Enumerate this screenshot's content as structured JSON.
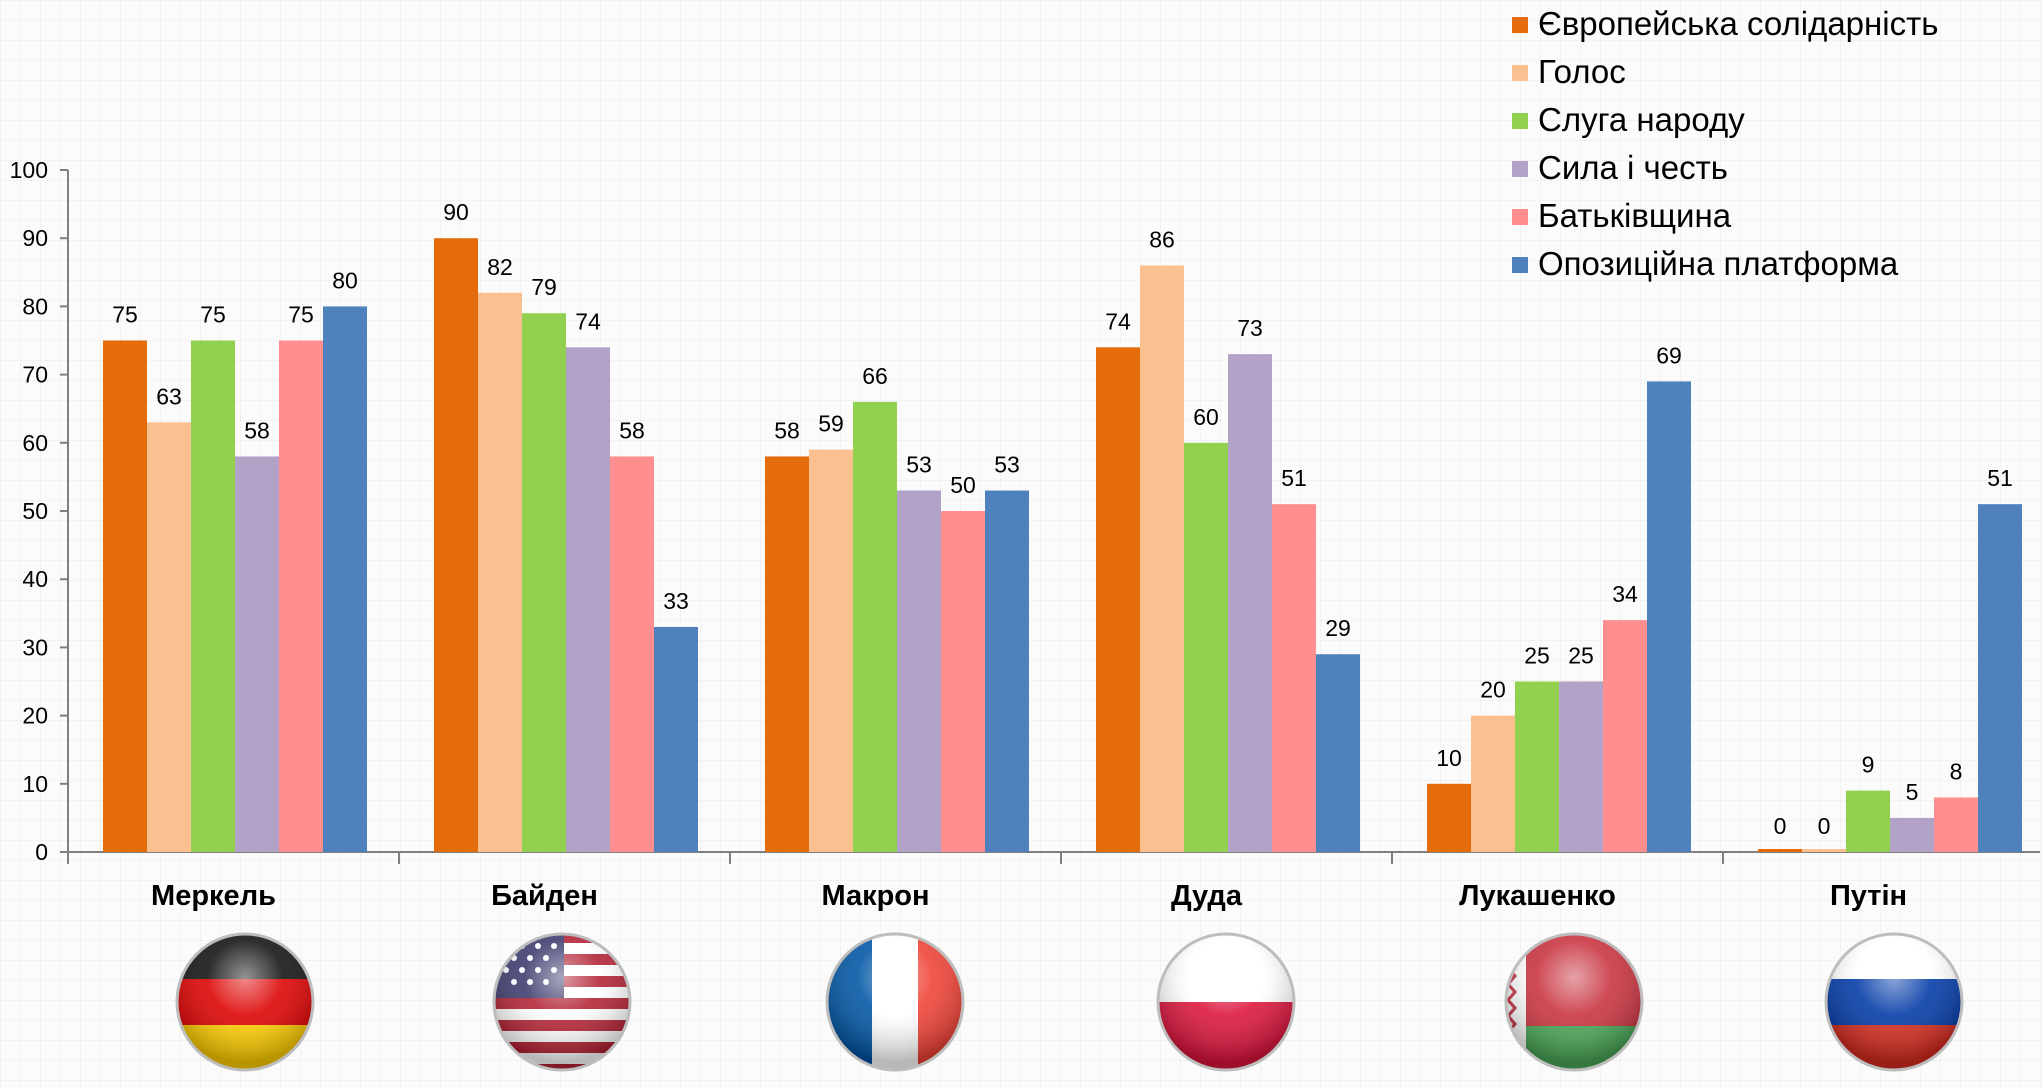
{
  "chart_data": {
    "type": "bar",
    "categories": [
      "Меркель",
      "Байден",
      "Макрон",
      "Дуда",
      "Лукашенко",
      "Путін"
    ],
    "category_flags": [
      "germany-flag-icon",
      "usa-flag-icon",
      "france-flag-icon",
      "poland-flag-icon",
      "belarus-flag-icon",
      "russia-flag-icon"
    ],
    "series": [
      {
        "name": "Європейська солідарність",
        "color": "#e46c0a",
        "values": [
          75,
          90,
          58,
          74,
          10,
          0
        ]
      },
      {
        "name": "Голос",
        "color": "#fac090",
        "values": [
          63,
          82,
          59,
          86,
          20,
          0
        ]
      },
      {
        "name": "Слуга народу",
        "color": "#92d050",
        "values": [
          75,
          79,
          66,
          60,
          25,
          9
        ]
      },
      {
        "name": "Сила і честь",
        "color": "#b3a2c7",
        "values": [
          58,
          74,
          53,
          73,
          25,
          5
        ]
      },
      {
        "name": "Батьківщина",
        "color": "#ff8f8f",
        "values": [
          75,
          58,
          50,
          51,
          34,
          8
        ]
      },
      {
        "name": "Опозиційна платформа",
        "color": "#4f81bd",
        "values": [
          80,
          33,
          53,
          29,
          69,
          51
        ]
      }
    ],
    "ylim": [
      0,
      100
    ],
    "yticks": [
      0,
      10,
      20,
      30,
      40,
      50,
      60,
      70,
      80,
      90,
      100
    ],
    "grid": false,
    "legend_position": "top-right"
  }
}
